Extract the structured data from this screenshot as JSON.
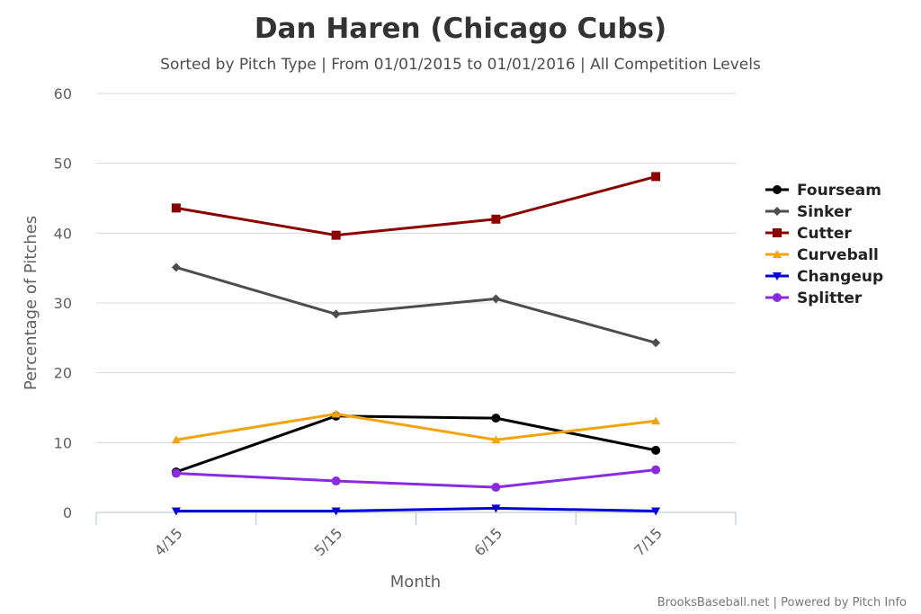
{
  "chart_data": {
    "type": "line",
    "title": "Dan Haren (Chicago Cubs)",
    "subtitle": "Sorted by Pitch Type | From 01/01/2015 to 01/01/2016 | All Competition Levels",
    "xlabel": "Month",
    "ylabel": "Percentage of Pitches",
    "categories": [
      "4/15",
      "5/15",
      "6/15",
      "7/15"
    ],
    "ylim": [
      0,
      60
    ],
    "yticks": [
      0,
      10,
      20,
      30,
      40,
      50,
      60
    ],
    "grid": true,
    "legend_position": "right",
    "series": [
      {
        "name": "Fourseam",
        "color": "#000000",
        "marker": "circle",
        "values": [
          5.8,
          13.8,
          13.5,
          8.9
        ]
      },
      {
        "name": "Sinker",
        "color": "#4d4d4d",
        "marker": "diamond",
        "values": [
          35.1,
          28.4,
          30.6,
          24.3
        ]
      },
      {
        "name": "Cutter",
        "color": "#8b0000",
        "marker": "square",
        "values": [
          43.6,
          39.7,
          42.0,
          48.1
        ]
      },
      {
        "name": "Curveball",
        "color": "#f2a30f",
        "marker": "triangle",
        "values": [
          10.4,
          14.1,
          10.4,
          13.1
        ]
      },
      {
        "name": "Changeup",
        "color": "#0000dd",
        "marker": "triangle-down",
        "values": [
          0.2,
          0.2,
          0.6,
          0.2
        ]
      },
      {
        "name": "Splitter",
        "color": "#8a2be2",
        "marker": "circle",
        "values": [
          5.6,
          4.5,
          3.6,
          6.1
        ]
      }
    ]
  },
  "credits": "BrooksBaseball.net | Powered by Pitch Info"
}
